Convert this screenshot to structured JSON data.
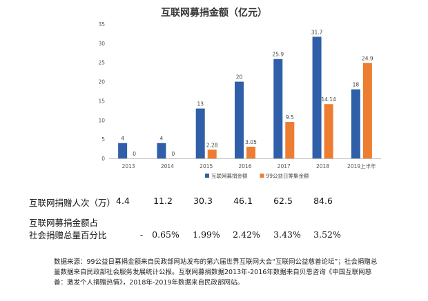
{
  "chart_data": {
    "type": "bar",
    "title": "互联网募捐金额（亿元）",
    "categories": [
      "2013",
      "2014",
      "2015",
      "2016",
      "2017",
      "2018",
      "2019上半年"
    ],
    "series": [
      {
        "name": "互联网募捐金额",
        "values": [
          4,
          4,
          13,
          20,
          25.9,
          31.7,
          18
        ],
        "labels": [
          "4",
          "4",
          "13",
          "20",
          "25.9",
          "31.7",
          "18"
        ],
        "color": "#2f5fa8"
      },
      {
        "name": "99公益日筹集金额",
        "values": [
          0,
          0,
          2.28,
          3.05,
          9.5,
          14.14,
          24.9
        ],
        "labels": [
          "0",
          "0",
          "2.28",
          "3.05",
          "9.5",
          "14.14",
          "24.9"
        ],
        "color": "#ed7d31"
      }
    ],
    "ylim": [
      0,
      35
    ],
    "yticks": [
      "0",
      "5",
      "10",
      "15",
      "20",
      "25",
      "30",
      "35"
    ],
    "grid": false,
    "legend": "bottom"
  },
  "table": {
    "donors_label": "互联网捐赠人次（万）",
    "donors": [
      "4.4",
      "11.2",
      "30.3",
      "46.1",
      "62.5",
      "84.6"
    ],
    "pct_label_1": "互联网募捐金额占",
    "pct_label_2": "社会捐赠总量百分比",
    "pct": [
      "-",
      "0.65%",
      "1.99%",
      "2.42%",
      "3.43%",
      "3.52%"
    ]
  },
  "source": "数据来源：99公益日募捐金额来自民政部网站发布的第六届世界互联网大会“互联网公益慈善论坛”；社会捐赠总量数据来自民政部社会服务发展统计公报。互联网募捐数据2013年-2016年数据来自贝恩咨询《中国互联网慈善：激发个人捐赠热情》，2018年-2019年数据来自民政部网站。"
}
